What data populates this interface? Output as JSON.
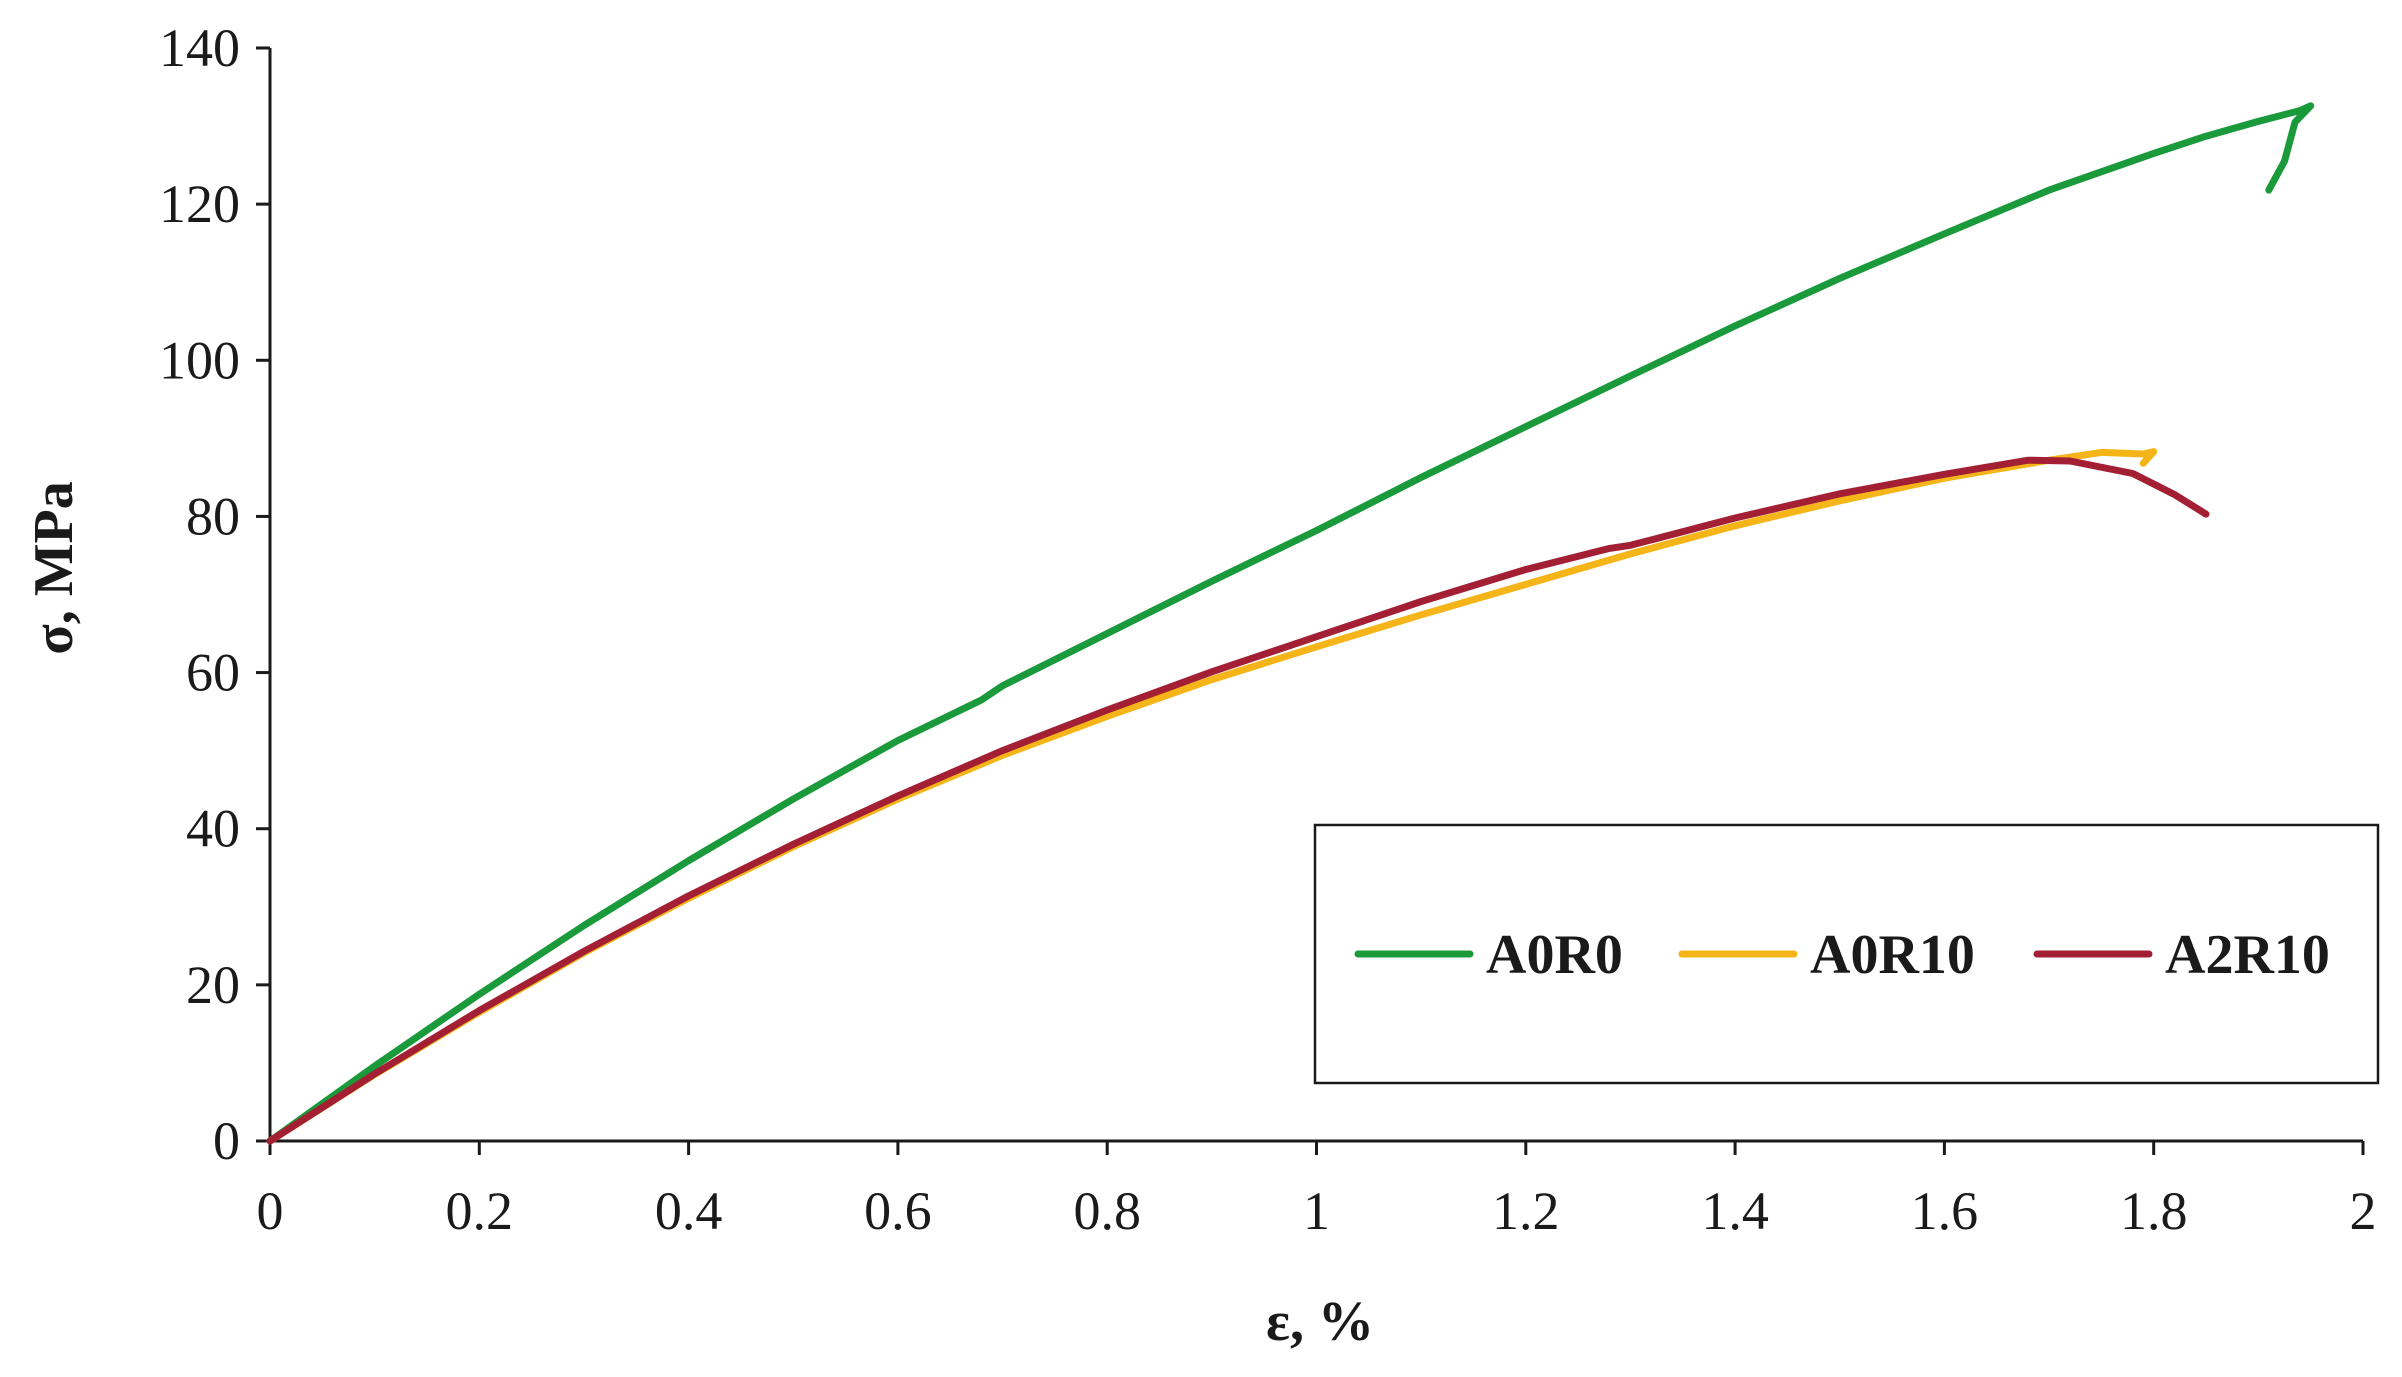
{
  "chart_data": {
    "type": "line",
    "title": "",
    "xlabel": "ε, %",
    "ylabel": "σ, MPa",
    "xlim": [
      0,
      2
    ],
    "ylim": [
      0,
      140
    ],
    "xticks": [
      0,
      0.2,
      0.4,
      0.6,
      0.8,
      1,
      1.2,
      1.4,
      1.6,
      1.8,
      2
    ],
    "yticks": [
      0,
      20,
      40,
      60,
      80,
      100,
      120,
      140
    ],
    "grid": false,
    "legend_position": "bottom-right",
    "series": [
      {
        "name": "A0R0",
        "color": "#1a9a3b",
        "points": [
          [
            0,
            0
          ],
          [
            0.1,
            9.6
          ],
          [
            0.2,
            18.8
          ],
          [
            0.3,
            27.6
          ],
          [
            0.4,
            35.9
          ],
          [
            0.5,
            43.8
          ],
          [
            0.6,
            51.3
          ],
          [
            0.68,
            56.5
          ],
          [
            0.7,
            58.3
          ],
          [
            0.8,
            65.0
          ],
          [
            0.9,
            71.7
          ],
          [
            1.0,
            78.2
          ],
          [
            1.1,
            85.0
          ],
          [
            1.2,
            91.5
          ],
          [
            1.3,
            98.0
          ],
          [
            1.4,
            104.4
          ],
          [
            1.5,
            110.5
          ],
          [
            1.6,
            116.2
          ],
          [
            1.7,
            121.8
          ],
          [
            1.8,
            126.5
          ],
          [
            1.85,
            128.7
          ],
          [
            1.9,
            130.6
          ],
          [
            1.94,
            132.0
          ],
          [
            1.95,
            132.6
          ],
          [
            1.935,
            130.5
          ],
          [
            1.925,
            125.5
          ],
          [
            1.91,
            121.8
          ]
        ]
      },
      {
        "name": "A0R10",
        "color": "#f5b417",
        "points": [
          [
            0,
            0
          ],
          [
            0.1,
            8.5
          ],
          [
            0.2,
            16.5
          ],
          [
            0.3,
            24.1
          ],
          [
            0.4,
            31.1
          ],
          [
            0.5,
            37.7
          ],
          [
            0.6,
            43.8
          ],
          [
            0.7,
            49.4
          ],
          [
            0.8,
            54.4
          ],
          [
            0.9,
            59.1
          ],
          [
            1.0,
            63.3
          ],
          [
            1.1,
            67.4
          ],
          [
            1.2,
            71.3
          ],
          [
            1.3,
            75.2
          ],
          [
            1.4,
            78.8
          ],
          [
            1.5,
            82.0
          ],
          [
            1.6,
            84.9
          ],
          [
            1.7,
            87.2
          ],
          [
            1.75,
            88.2
          ],
          [
            1.79,
            88.0
          ],
          [
            1.8,
            88.3
          ],
          [
            1.79,
            86.8
          ]
        ]
      },
      {
        "name": "A2R10",
        "color": "#a31f34",
        "points": [
          [
            0,
            0
          ],
          [
            0.1,
            8.6
          ],
          [
            0.2,
            16.7
          ],
          [
            0.3,
            24.3
          ],
          [
            0.4,
            31.4
          ],
          [
            0.5,
            38.0
          ],
          [
            0.6,
            44.2
          ],
          [
            0.7,
            50.0
          ],
          [
            0.8,
            55.2
          ],
          [
            0.9,
            60.1
          ],
          [
            1.0,
            64.6
          ],
          [
            1.1,
            69.1
          ],
          [
            1.2,
            73.2
          ],
          [
            1.28,
            75.9
          ],
          [
            1.3,
            76.3
          ],
          [
            1.4,
            79.8
          ],
          [
            1.5,
            82.9
          ],
          [
            1.6,
            85.4
          ],
          [
            1.68,
            87.2
          ],
          [
            1.72,
            87.1
          ],
          [
            1.78,
            85.5
          ],
          [
            1.82,
            82.8
          ],
          [
            1.85,
            80.3
          ]
        ]
      }
    ]
  }
}
